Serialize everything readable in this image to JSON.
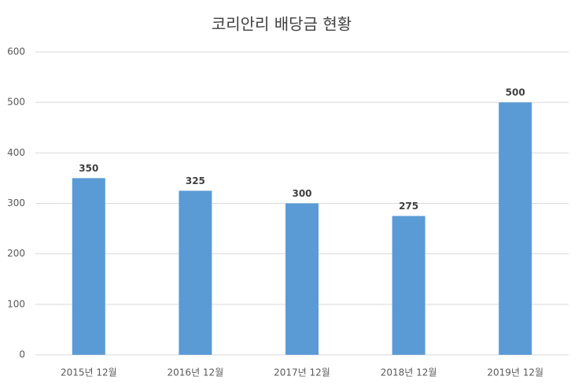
{
  "chart_data": {
    "type": "bar",
    "title": "코리안리 배당금 현황",
    "categories": [
      "2015년 12월",
      "2016년 12월",
      "2017년 12월",
      "2018년 12월",
      "2019년 12월"
    ],
    "values": [
      350,
      325,
      300,
      275,
      500
    ],
    "color": "#5b9bd5",
    "ylim": [
      0,
      600
    ],
    "yticks": [
      0,
      100,
      200,
      300,
      400,
      500,
      600
    ],
    "grid": true,
    "data_labels": true
  }
}
